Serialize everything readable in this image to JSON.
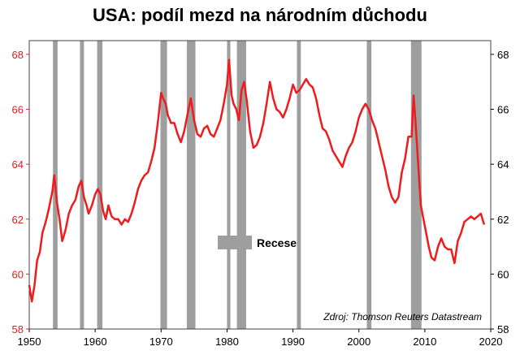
{
  "chart_data": {
    "type": "line",
    "title": "USA: podíl mezd na národním důchodu",
    "source": "Zdroj: Thomson Reuters Datastream",
    "legend": {
      "label": "Recese",
      "placement": "center"
    },
    "xlim": [
      1950,
      2020
    ],
    "ylim": [
      58,
      68.5
    ],
    "x_ticks": [
      "1950",
      "1960",
      "1970",
      "1980",
      "1990",
      "2000",
      "2010",
      "2020"
    ],
    "y_ticks_left": [
      "58",
      "60",
      "62",
      "64",
      "66",
      "68"
    ],
    "y_ticks_right": [
      "58",
      "60",
      "62",
      "64",
      "66",
      "68"
    ],
    "colors": {
      "line": "#ee1c1c",
      "recession": "#9e9e9e",
      "axis_left": "#e02020",
      "axis_right": "#000000"
    },
    "recessions": [
      [
        1953.6,
        1954.3
      ],
      [
        1957.7,
        1958.3
      ],
      [
        1960.3,
        1961.1
      ],
      [
        1969.9,
        1970.9
      ],
      [
        1973.9,
        1975.2
      ],
      [
        1980.0,
        1980.5
      ],
      [
        1981.5,
        1982.9
      ],
      [
        1990.6,
        1991.2
      ],
      [
        2001.2,
        2001.9
      ],
      [
        2007.9,
        2009.5
      ]
    ],
    "series": [
      {
        "x": [
          1950.0,
          1950.4,
          1950.8,
          1951.2,
          1951.6,
          1952.0,
          1952.5,
          1953.0,
          1953.5,
          1953.8,
          1954.2,
          1954.6,
          1955.0,
          1955.5,
          1956.0,
          1956.5,
          1957.0,
          1957.5,
          1957.9,
          1958.3,
          1958.7,
          1959.0,
          1959.5,
          1960.0,
          1960.4,
          1960.8,
          1961.2,
          1961.6,
          1962.0,
          1962.5,
          1963.0,
          1963.5,
          1964.0,
          1964.5,
          1965.0,
          1965.5,
          1966.0,
          1966.5,
          1967.0,
          1967.5,
          1968.0,
          1968.5,
          1969.0,
          1969.5,
          1970.0,
          1970.3,
          1970.7,
          1971.0,
          1971.5,
          1972.0,
          1972.5,
          1973.0,
          1973.5,
          1974.0,
          1974.5,
          1975.0,
          1975.5,
          1976.0,
          1976.5,
          1977.0,
          1977.5,
          1978.0,
          1978.5,
          1979.0,
          1979.5,
          1980.0,
          1980.3,
          1980.7,
          1981.0,
          1981.4,
          1981.8,
          1982.2,
          1982.6,
          1983.0,
          1983.5,
          1984.0,
          1984.5,
          1985.0,
          1985.5,
          1986.0,
          1986.5,
          1987.0,
          1987.5,
          1988.0,
          1988.5,
          1989.0,
          1989.5,
          1990.0,
          1990.5,
          1991.0,
          1991.5,
          1992.0,
          1992.5,
          1993.0,
          1993.5,
          1994.0,
          1994.5,
          1995.0,
          1995.5,
          1996.0,
          1996.5,
          1997.0,
          1997.5,
          1998.0,
          1998.5,
          1999.0,
          1999.5,
          2000.0,
          2000.5,
          2001.0,
          2001.5,
          2002.0,
          2002.5,
          2003.0,
          2003.5,
          2004.0,
          2004.5,
          2005.0,
          2005.5,
          2006.0,
          2006.5,
          2007.0,
          2007.5,
          2008.0,
          2008.3,
          2008.6,
          2009.0,
          2009.4,
          2009.8,
          2010.2,
          2010.6,
          2011.0,
          2011.5,
          2012.0,
          2012.5,
          2013.0,
          2013.5,
          2014.0,
          2014.5,
          2015.0,
          2015.5,
          2016.0,
          2016.5,
          2017.0,
          2017.5,
          2018.0,
          2018.5,
          2019.0
        ],
        "values": [
          59.6,
          59.0,
          59.6,
          60.5,
          60.8,
          61.5,
          61.9,
          62.4,
          63.0,
          63.6,
          62.6,
          62.0,
          61.2,
          61.6,
          62.2,
          62.5,
          62.7,
          63.2,
          63.4,
          62.8,
          62.5,
          62.2,
          62.5,
          62.9,
          63.1,
          62.9,
          62.3,
          62.0,
          62.5,
          62.1,
          62.0,
          62.0,
          61.8,
          62.0,
          61.9,
          62.2,
          62.6,
          63.1,
          63.4,
          63.6,
          63.7,
          64.1,
          64.6,
          65.5,
          66.6,
          66.4,
          66.2,
          65.8,
          65.5,
          65.5,
          65.1,
          64.8,
          65.2,
          65.8,
          66.4,
          65.6,
          65.1,
          65.0,
          65.3,
          65.4,
          65.1,
          65.0,
          65.3,
          65.6,
          66.2,
          66.9,
          67.8,
          66.5,
          66.2,
          66.0,
          65.6,
          66.7,
          67.0,
          66.3,
          65.2,
          64.6,
          64.7,
          65.0,
          65.5,
          66.2,
          67.0,
          66.4,
          66.0,
          65.9,
          65.7,
          66.0,
          66.4,
          66.9,
          66.6,
          66.7,
          66.9,
          67.1,
          66.9,
          66.8,
          66.4,
          65.8,
          65.3,
          65.2,
          64.9,
          64.5,
          64.3,
          64.1,
          63.9,
          64.3,
          64.6,
          64.8,
          65.2,
          65.7,
          66.0,
          66.2,
          66.0,
          65.6,
          65.3,
          64.8,
          64.3,
          63.8,
          63.2,
          62.8,
          62.6,
          62.8,
          63.7,
          64.2,
          65.0,
          65.0,
          66.5,
          65.5,
          64.0,
          62.5,
          62.0,
          61.5,
          61.0,
          60.6,
          60.5,
          61.0,
          61.3,
          61.0,
          60.9,
          60.9,
          60.4,
          61.2,
          61.5,
          61.9,
          62.0,
          62.1,
          62.0,
          62.1,
          62.2,
          61.8
        ]
      }
    ]
  }
}
